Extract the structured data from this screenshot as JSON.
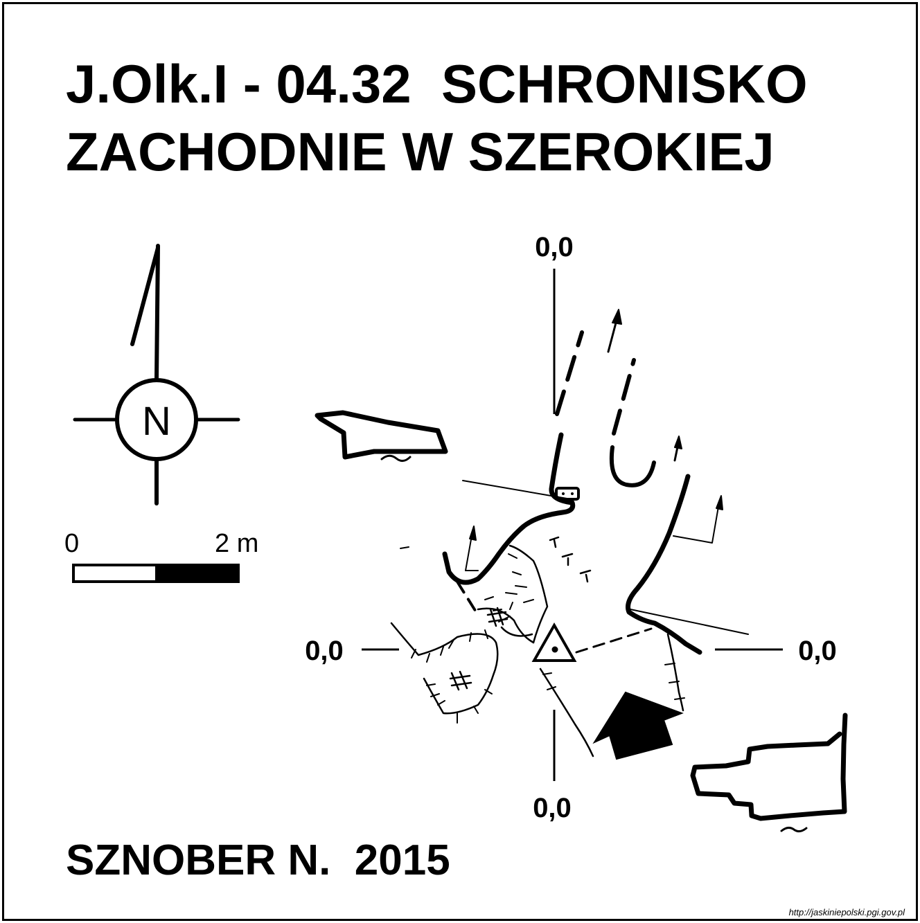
{
  "title": {
    "line1": "J.Olk.I - 04.32  SCHRONISKO",
    "line2": "ZACHODNIE W SZEROKIEJ"
  },
  "north_arrow": {
    "letter": "N",
    "icon": "north-arrow-icon"
  },
  "scale_bar": {
    "start_label": "0",
    "end_label": "2 m"
  },
  "axis_labels": {
    "top": "0,0",
    "left": "0,0",
    "right": "0,0",
    "bottom": "0,0"
  },
  "author": "SZNOBER N.  2015",
  "source_url": "http://jaskiniepolski.pgi.gov.pl",
  "colors": {
    "ink": "#000000",
    "paper": "#ffffff"
  }
}
